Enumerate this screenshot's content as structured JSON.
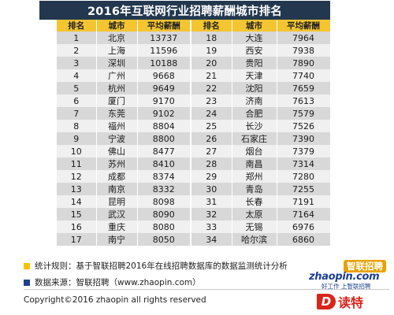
{
  "title": "2016年互联网行业招聘薪酬城市排名",
  "headers": [
    "排名",
    "城市",
    "平均薪酬",
    "排名",
    "城市",
    "平均薪酬"
  ],
  "left_rows": [
    {
      "rank": "1",
      "city": "北京",
      "salary": "13737"
    },
    {
      "rank": "2",
      "city": "上海",
      "salary": "11596"
    },
    {
      "rank": "3",
      "city": "深圳",
      "salary": "10188"
    },
    {
      "rank": "4",
      "city": "广州",
      "salary": "9668"
    },
    {
      "rank": "5",
      "city": "杭州",
      "salary": "9649"
    },
    {
      "rank": "6",
      "city": "厦门",
      "salary": "9170"
    },
    {
      "rank": "7",
      "city": "东莞",
      "salary": "9102"
    },
    {
      "rank": "8",
      "city": "福州",
      "salary": "8804"
    },
    {
      "rank": "9",
      "city": "宁波",
      "salary": "8800"
    },
    {
      "rank": "10",
      "city": "佛山",
      "salary": "8477"
    },
    {
      "rank": "11",
      "city": "苏州",
      "salary": "8410"
    },
    {
      "rank": "12",
      "city": "成都",
      "salary": "8374"
    },
    {
      "rank": "13",
      "city": "南京",
      "salary": "8332"
    },
    {
      "rank": "14",
      "city": "昆明",
      "salary": "8098"
    },
    {
      "rank": "15",
      "city": "武汉",
      "salary": "8090"
    },
    {
      "rank": "16",
      "city": "重庆",
      "salary": "8080"
    },
    {
      "rank": "17",
      "city": "南宁",
      "salary": "8050"
    }
  ],
  "right_rows": [
    {
      "rank": "18",
      "city": "大连",
      "salary": "7964"
    },
    {
      "rank": "19",
      "city": "西安",
      "salary": "7938"
    },
    {
      "rank": "20",
      "city": "贵阳",
      "salary": "7890"
    },
    {
      "rank": "21",
      "city": "天津",
      "salary": "7740"
    },
    {
      "rank": "22",
      "city": "沈阳",
      "salary": "7659"
    },
    {
      "rank": "23",
      "city": "济南",
      "salary": "7613"
    },
    {
      "rank": "24",
      "city": "合肥",
      "salary": "7579"
    },
    {
      "rank": "25",
      "city": "长沙",
      "salary": "7526"
    },
    {
      "rank": "26",
      "city": "石家庄",
      "salary": "7390"
    },
    {
      "rank": "27",
      "city": "烟台",
      "salary": "7379"
    },
    {
      "rank": "28",
      "city": "南昌",
      "salary": "7314"
    },
    {
      "rank": "29",
      "city": "郑州",
      "salary": "7280"
    },
    {
      "rank": "30",
      "city": "青岛",
      "salary": "7255"
    },
    {
      "rank": "31",
      "city": "长春",
      "salary": "7191"
    },
    {
      "rank": "32",
      "city": "太原",
      "salary": "7164"
    },
    {
      "rank": "33",
      "city": "无锡",
      "salary": "6976"
    },
    {
      "rank": "34",
      "city": "哈尔滨",
      "salary": "6860"
    }
  ],
  "notes": {
    "rule": "统计规则：基于智联招聘2016年在线招聘数据库的数据监测统计分析",
    "source": "数据来源：智联招聘（www.zhaopin.com）"
  },
  "copyright": "Copyright©2016 zhaopin all rights reserved",
  "logo": {
    "cn": "智联招聘",
    "en": "zhaopin.com",
    "slogan": "好工作 上智联招聘"
  },
  "watermark": {
    "mark": "D",
    "text": "读特"
  },
  "colors": {
    "title_bg": "#23384f",
    "header_bg": "#f4c531",
    "row_dark": "#d8d8d8",
    "row_light": "#f0f0f0",
    "bullet_yellow": "#f4c300",
    "bullet_blue": "#1d3f8f",
    "watermark_red": "#d9251c"
  }
}
